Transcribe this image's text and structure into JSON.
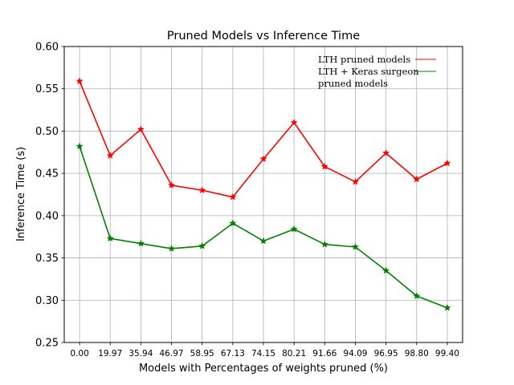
{
  "chart_data": {
    "type": "line",
    "title": "Pruned Models vs Inference Time",
    "xlabel": "Models with Percentages of weights pruned (%)",
    "ylabel": "Inference Time (s)",
    "categories": [
      "0.00",
      "19.97",
      "35.94",
      "46.97",
      "58.95",
      "67.13",
      "74.15",
      "80.21",
      "91.66",
      "94.09",
      "96.95",
      "98.80",
      "99.40"
    ],
    "ylim": [
      0.25,
      0.6
    ],
    "yticks": [
      "0.25",
      "0.30",
      "0.35",
      "0.40",
      "0.45",
      "0.50",
      "0.55",
      "0.60"
    ],
    "grid": true,
    "legend_position": "top-right",
    "series": [
      {
        "name": "LTH pruned models",
        "legend_lines": [
          "LTH pruned models"
        ],
        "color": "#ff0000",
        "marker": "star",
        "values": [
          0.559,
          0.471,
          0.502,
          0.436,
          0.43,
          0.422,
          0.467,
          0.51,
          0.458,
          0.44,
          0.474,
          0.443,
          0.462
        ]
      },
      {
        "name": "LTH + Keras surgeon pruned models",
        "legend_lines": [
          "LTH + Keras surgeon",
          "pruned models"
        ],
        "color": "#008000",
        "marker": "star",
        "values": [
          0.482,
          0.373,
          0.367,
          0.361,
          0.364,
          0.391,
          0.37,
          0.384,
          0.366,
          0.363,
          0.335,
          0.305,
          0.291
        ]
      }
    ]
  }
}
